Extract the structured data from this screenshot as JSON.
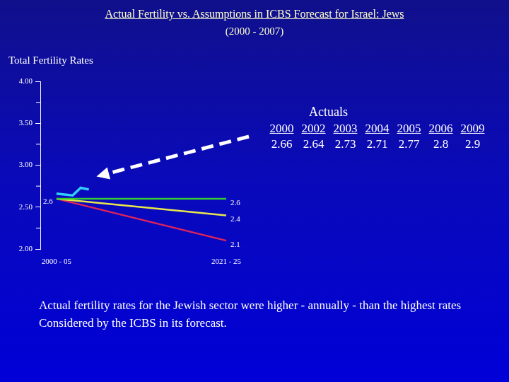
{
  "chart_data": {
    "type": "line",
    "title": "Actual Fertility vs. Assumptions in ICBS Forecast for Israel:  Jews",
    "subtitle": "(2000 - 2007)",
    "y_label": "Total Fertility Rates",
    "categories": [
      null,
      null,
      "2000 - 05",
      null,
      null,
      null,
      null,
      null,
      null,
      null,
      null,
      null,
      null,
      null,
      null,
      null,
      null,
      null,
      null,
      null,
      null,
      null,
      null,
      "2021 - 25"
    ],
    "series": [
      {
        "color": "#33cc33",
        "data_labels": true,
        "values": [
          null,
          null,
          2.6,
          null,
          null,
          null,
          null,
          null,
          null,
          null,
          null,
          null,
          null,
          null,
          null,
          null,
          null,
          null,
          null,
          null,
          null,
          null,
          null,
          2.6
        ]
      },
      {
        "color": "#e8e84a",
        "data_labels": true,
        "values": [
          null,
          null,
          2.6,
          null,
          null,
          null,
          null,
          null,
          null,
          null,
          null,
          null,
          null,
          null,
          null,
          null,
          null,
          null,
          null,
          null,
          null,
          null,
          null,
          2.4
        ]
      },
      {
        "color": "#e0245a",
        "data_labels": true,
        "values": [
          null,
          null,
          2.6,
          null,
          null,
          null,
          null,
          null,
          null,
          null,
          null,
          null,
          null,
          null,
          null,
          null,
          null,
          null,
          null,
          null,
          null,
          null,
          null,
          2.1
        ]
      },
      {
        "color": "#33ccff",
        "values": [
          null,
          null,
          2.66,
          null,
          2.64,
          2.73,
          2.71,
          null,
          null,
          null,
          null,
          null,
          null,
          null,
          null,
          null,
          null,
          null,
          null,
          null,
          null,
          null,
          null,
          null
        ]
      }
    ],
    "ylim": [
      2,
      4
    ],
    "yticks": [
      {
        "value": 2,
        "label": "2.00"
      },
      {
        "value": 2.5,
        "label": "2.50"
      },
      {
        "value": 3,
        "label": "3.00"
      },
      {
        "value": 3.5,
        "label": "3.50"
      },
      {
        "value": 4,
        "label": "4.00"
      }
    ],
    "grid": false,
    "actuals_table": {
      "title": "Actuals",
      "years": [
        2000,
        2002,
        2003,
        2004,
        2005,
        2006,
        2009
      ],
      "values": [
        2.66,
        2.64,
        2.73,
        2.71,
        2.77,
        2.8,
        2.9
      ]
    },
    "note": [
      "Actual fertility rates for the Jewish sector were higher -  annually - than the highest rates",
      "Considered by the ICBS in its forecast."
    ]
  }
}
